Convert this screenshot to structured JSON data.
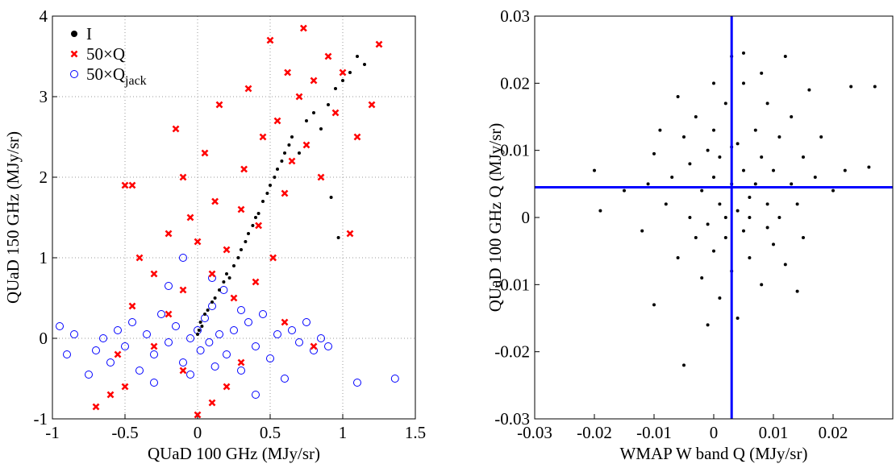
{
  "chart_data": [
    {
      "type": "scatter",
      "xlabel": "QUaD 100 GHz (MJy/sr)",
      "ylabel": "QUaD 150 GHz (MJy/sr)",
      "xlim": [
        -1,
        1.5
      ],
      "ylim": [
        -1,
        4
      ],
      "xticks": [
        -1,
        -0.5,
        0,
        0.5,
        1,
        1.5
      ],
      "yticks": [
        -1,
        0,
        1,
        2,
        3,
        4
      ],
      "grid": true,
      "legend": "upper left",
      "series": [
        {
          "name": "50×Q",
          "name_subscript": "jack",
          "color": "#0000ff",
          "marker": "open-circle",
          "x": [
            -0.95,
            -0.9,
            -0.85,
            -0.75,
            -0.7,
            -0.65,
            -0.6,
            -0.55,
            -0.5,
            -0.45,
            -0.4,
            -0.35,
            -0.3,
            -0.25,
            -0.2,
            -0.15,
            -0.1,
            -0.05,
            0,
            0.02,
            0.05,
            0.08,
            0.1,
            0.12,
            0.15,
            0.18,
            0.2,
            0.25,
            0.3,
            0.35,
            0.4,
            0.45,
            0.5,
            0.55,
            0.6,
            0.65,
            0.7,
            0.75,
            0.8,
            0.85,
            0.9,
            1.1,
            1.36,
            -0.1,
            -0.2,
            0.4,
            -0.3,
            0.1,
            -0.05,
            0.3
          ],
          "y": [
            0.15,
            -0.2,
            0.05,
            -0.45,
            -0.15,
            0,
            -0.3,
            0.1,
            -0.1,
            0.2,
            -0.4,
            0.05,
            -0.2,
            0.3,
            -0.05,
            0.15,
            -0.3,
            0,
            0.1,
            -0.15,
            0.25,
            -0.05,
            0.4,
            -0.35,
            0.05,
            0.6,
            -0.2,
            0.1,
            -0.4,
            0.2,
            -0.1,
            0.3,
            -0.25,
            0.05,
            -0.5,
            0.1,
            -0.05,
            0.2,
            -0.15,
            0,
            -0.1,
            -0.55,
            -0.5,
            1.0,
            0.65,
            -0.7,
            -0.55,
            0.75,
            -0.45,
            0.35
          ]
        },
        {
          "name": "50×Q",
          "color": "#ff0000",
          "marker": "x",
          "x": [
            -0.7,
            -0.6,
            -0.5,
            -0.55,
            -0.45,
            -0.4,
            -0.5,
            -0.45,
            -0.3,
            -0.2,
            -0.15,
            -0.1,
            -0.05,
            0,
            0.05,
            0.1,
            0.12,
            0.15,
            0.2,
            0.25,
            0.3,
            0.32,
            0.35,
            0.4,
            0.42,
            0.45,
            0.5,
            0.52,
            0.55,
            0.6,
            0.62,
            0.65,
            0.7,
            0.73,
            0.75,
            0.8,
            0.85,
            0.9,
            0.95,
            1.0,
            1.05,
            1.1,
            1.2,
            1.25,
            0.2,
            0.1,
            -0.1,
            -0.3,
            0.3,
            0,
            -0.2,
            0.6,
            0.8,
            -0.1
          ],
          "y": [
            -0.85,
            -0.7,
            -0.6,
            -0.2,
            0.4,
            1.0,
            1.9,
            1.9,
            0.8,
            1.3,
            2.6,
            2.0,
            1.5,
            1.2,
            2.3,
            0.8,
            1.7,
            2.9,
            1.1,
            0.5,
            1.6,
            2.1,
            3.1,
            0.7,
            1.4,
            2.5,
            3.7,
            1.0,
            2.7,
            1.8,
            3.3,
            2.2,
            3.0,
            3.85,
            2.4,
            3.2,
            2.0,
            3.5,
            2.8,
            3.3,
            1.3,
            2.5,
            2.9,
            3.65,
            -0.6,
            -0.8,
            -0.4,
            -0.1,
            -0.3,
            -0.95,
            0.3,
            0.2,
            -0.1,
            0.6
          ]
        },
        {
          "name": "I",
          "color": "#000000",
          "marker": "dot",
          "x": [
            0,
            0.01,
            0.02,
            0.03,
            0.05,
            0.07,
            0.1,
            0.12,
            0.15,
            0.18,
            0.2,
            0.22,
            0.25,
            0.28,
            0.3,
            0.33,
            0.35,
            0.38,
            0.4,
            0.42,
            0.45,
            0.48,
            0.5,
            0.53,
            0.55,
            0.58,
            0.6,
            0.63,
            0.65,
            0.7,
            0.75,
            0.8,
            0.85,
            0.9,
            0.95,
            1.0,
            1.05,
            1.1,
            1.15,
            0.97,
            0.92
          ],
          "y": [
            0.05,
            0.1,
            0.2,
            0.15,
            0.3,
            0.35,
            0.45,
            0.5,
            0.6,
            0.7,
            0.8,
            0.75,
            0.9,
            1.0,
            1.1,
            1.2,
            1.3,
            1.4,
            1.5,
            1.55,
            1.7,
            1.8,
            1.9,
            2.0,
            2.1,
            2.2,
            2.3,
            2.4,
            2.5,
            2.3,
            2.7,
            2.8,
            2.6,
            2.9,
            3.1,
            3.2,
            3.3,
            3.5,
            3.4,
            1.25,
            1.75
          ]
        }
      ]
    },
    {
      "type": "scatter",
      "xlabel": "WMAP W band Q (MJy/sr)",
      "ylabel": "QUaD 100 GHz Q (MJy/sr)",
      "xlim": [
        -0.03,
        0.03
      ],
      "ylim": [
        -0.03,
        0.03
      ],
      "xticks": [
        -0.03,
        -0.02,
        -0.01,
        0,
        0.01,
        0.02
      ],
      "yticks": [
        -0.03,
        -0.02,
        -0.01,
        0,
        0.01,
        0.02,
        0.03
      ],
      "grid": false,
      "lines": [
        {
          "axis": "x",
          "value": 0.003,
          "color": "#0000ff"
        },
        {
          "axis": "y",
          "value": 0.0045,
          "color": "#0000ff"
        }
      ],
      "series": [
        {
          "color": "#000000",
          "marker": "dot",
          "x": [
            -0.02,
            -0.019,
            -0.015,
            -0.012,
            -0.01,
            -0.01,
            -0.008,
            -0.007,
            -0.006,
            -0.005,
            -0.005,
            -0.004,
            -0.004,
            -0.003,
            -0.003,
            -0.002,
            -0.002,
            -0.001,
            -0.001,
            0,
            0,
            0,
            0.001,
            0.001,
            0.001,
            0.002,
            0.002,
            0.002,
            0.003,
            0.003,
            0.003,
            0.004,
            0.004,
            0.004,
            0.005,
            0.005,
            0.005,
            0.006,
            0.006,
            0.006,
            0.007,
            0.007,
            0.008,
            0.008,
            0.009,
            0.009,
            0.01,
            0.01,
            0.011,
            0.011,
            0.012,
            0.012,
            0.013,
            0.013,
            0.014,
            0.015,
            0.015,
            0.016,
            0.017,
            0.018,
            0.02,
            0.022,
            0.023,
            0.026,
            0.027,
            -0.009,
            -0.011,
            0,
            0.008,
            -0.006,
            0.014,
            -0.001,
            0.005,
            0.009,
            0.003
          ],
          "y": [
            0.007,
            0.001,
            0.004,
            -0.002,
            0.0095,
            -0.013,
            0.002,
            0.006,
            -0.006,
            0.012,
            -0.022,
            0,
            0.008,
            -0.003,
            0.015,
            0.004,
            -0.009,
            0.01,
            -0.001,
            0.006,
            -0.005,
            0.013,
            0.002,
            -0.012,
            0.009,
            0,
            0.017,
            -0.003,
            0.005,
            0.024,
            -0.008,
            0.011,
            0.001,
            -0.015,
            0.007,
            -0.002,
            0.02,
            0.003,
            0,
            -0.006,
            0.013,
            0.005,
            -0.01,
            0.009,
            0.002,
            0.017,
            -0.004,
            0.007,
            0.012,
            0,
            0.024,
            -0.007,
            0.005,
            0.015,
            0.002,
            0.009,
            -0.003,
            0.019,
            0.006,
            0.012,
            0.004,
            0.007,
            0.0195,
            0.0075,
            0.0195,
            0.013,
            0.005,
            0.02,
            0.0215,
            0.018,
            -0.011,
            -0.016,
            0.0245,
            -0.0015,
            0.0105
          ]
        }
      ]
    }
  ]
}
